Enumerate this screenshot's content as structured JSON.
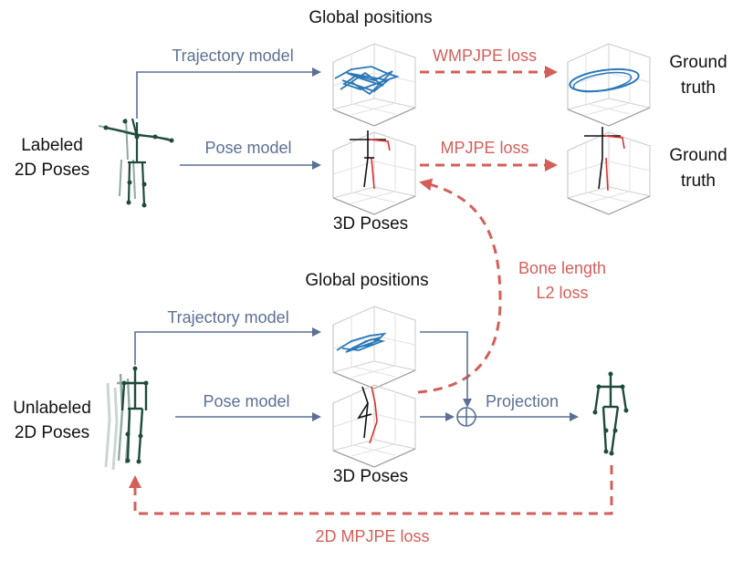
{
  "top": {
    "global_positions": "Global positions",
    "trajectory_model": "Trajectory model",
    "wmpjpe_loss": "WMPJPE loss",
    "ground_truth_line1": "Ground",
    "ground_truth_line2": "truth",
    "labeled_line1": "Labeled",
    "labeled_line2": "2D Poses",
    "pose_model": "Pose model",
    "mpjpe_loss": "MPJPE loss",
    "ground_truth2_line1": "Ground",
    "ground_truth2_line2": "truth",
    "poses_3d": "3D Poses"
  },
  "middle": {
    "bone_length_line1": "Bone length",
    "bone_length_line2": "L2 loss"
  },
  "bottom": {
    "global_positions": "Global positions",
    "trajectory_model": "Trajectory model",
    "unlabeled_line1": "Unlabeled",
    "unlabeled_line2": "2D Poses",
    "pose_model": "Pose model",
    "projection": "Projection",
    "poses_3d": "3D Poses",
    "mpjpe_2d_loss": "2D MPJPE loss"
  },
  "colors": {
    "model_arrow": "#5b7094",
    "loss_arrow": "#d35f5a",
    "trajectory": "#2b78b8",
    "skeleton_dark": "#1f4a3c",
    "skeleton_light": "#8fa9a0",
    "pose_left": "#111111",
    "pose_right": "#e03030"
  }
}
